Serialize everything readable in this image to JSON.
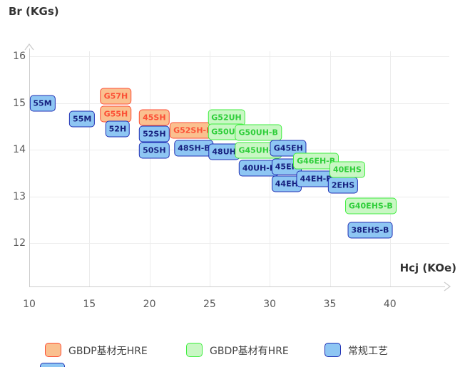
{
  "titles": {
    "y_axis": "Br (KGs)",
    "x_axis": "Hcj (KOe)"
  },
  "axes": {
    "y_ticks": [
      "16",
      "15",
      "14",
      "13",
      "12"
    ],
    "x_ticks": [
      "10",
      "15",
      "20",
      "25",
      "30",
      "35",
      "40"
    ]
  },
  "chart_data": {
    "type": "scatter",
    "title": "",
    "xlabel": "Hcj (KOe)",
    "ylabel": "Br (KGs)",
    "xlim": [
      10,
      45
    ],
    "ylim": [
      11,
      16.2
    ],
    "grid": true,
    "legend_position": "bottom",
    "point_style": "rounded-labeled-box",
    "series": [
      {
        "name": "GBDP基材无HRE",
        "category": "gbdp_no_hre",
        "points": [
          {
            "label": "G57H",
            "x": 17.2,
            "y": 15.15,
            "z": 3
          },
          {
            "label": "G55H",
            "x": 17.2,
            "y": 14.76,
            "z": 4
          },
          {
            "label": "45SH",
            "x": 20.4,
            "y": 14.68,
            "z": 6
          },
          {
            "label": "G52SH-B",
            "x": 23.6,
            "y": 14.41,
            "z": 9
          }
        ]
      },
      {
        "name": "GBDP基材有HRE",
        "category": "gbdp_hre",
        "points": [
          {
            "label": "G52UH",
            "x": 26.4,
            "y": 14.69,
            "z": 11
          },
          {
            "label": "G50UH",
            "x": 26.4,
            "y": 14.38,
            "z": 12
          },
          {
            "label": "G50UH-B",
            "x": 29.05,
            "y": 14.36,
            "z": 14
          },
          {
            "label": "G45UH-B",
            "x": 29.05,
            "y": 13.99,
            "z": 15
          },
          {
            "label": "G46EH-B",
            "x": 33.85,
            "y": 13.76,
            "z": 20
          },
          {
            "label": "40EHS",
            "x": 36.45,
            "y": 13.58,
            "z": 23
          },
          {
            "label": "G40EHS-B",
            "x": 38.4,
            "y": 12.8,
            "z": 24
          }
        ]
      },
      {
        "name": "常规工艺",
        "category": "conventional",
        "points": [
          {
            "label": "55M",
            "x": 11.1,
            "y": 15.0,
            "z": 1
          },
          {
            "label": "55M",
            "x": 14.4,
            "y": 14.66,
            "z": 2
          },
          {
            "label": "52H",
            "x": 17.35,
            "y": 14.44,
            "z": 5
          },
          {
            "label": "52SH",
            "x": 20.4,
            "y": 14.34,
            "z": 7
          },
          {
            "label": "50SH",
            "x": 20.4,
            "y": 13.99,
            "z": 8
          },
          {
            "label": "48SH-B",
            "x": 23.7,
            "y": 14.03,
            "z": 10
          },
          {
            "label": "48UH",
            "x": 26.2,
            "y": 13.96,
            "z": 13
          },
          {
            "label": "40UH-B",
            "x": 29.1,
            "y": 13.61,
            "z": 16
          },
          {
            "label": "G45EH",
            "x": 31.55,
            "y": 14.03,
            "z": 17
          },
          {
            "label": "45EH",
            "x": 31.4,
            "y": 13.63,
            "z": 18
          },
          {
            "label": "44EH",
            "x": 31.4,
            "y": 13.26,
            "z": 19
          },
          {
            "label": "44EH-B",
            "x": 33.85,
            "y": 13.38,
            "z": 21
          },
          {
            "label": "2EHS",
            "x": 36.1,
            "y": 13.24,
            "z": 22
          },
          {
            "label": "38EHS-B",
            "x": 38.35,
            "y": 12.27,
            "z": 25
          }
        ]
      }
    ]
  },
  "legend": {
    "items": [
      {
        "label": "GBDP基材无HRE",
        "category": "gbdp_no_hre"
      },
      {
        "label": "GBDP基材有HRE",
        "category": "gbdp_hre"
      },
      {
        "label": "常规工艺",
        "category": "conventional"
      }
    ]
  },
  "colors": {
    "gbdp_no_hre": {
      "fill": "#FAC08F",
      "border": "#FC4E36",
      "text": "#FB4F35"
    },
    "gbdp_hre": {
      "fill": "#C9F7C4",
      "border": "#3FEE3F",
      "text": "#2FCE3A"
    },
    "conventional": {
      "fill": "#8EC6F3",
      "border": "#2030B4",
      "text": "#16207E"
    },
    "axis_text": "#595959",
    "axis_line": "#CCCCCC",
    "grid_line": "#ECECEC",
    "title_text": "#333333"
  }
}
